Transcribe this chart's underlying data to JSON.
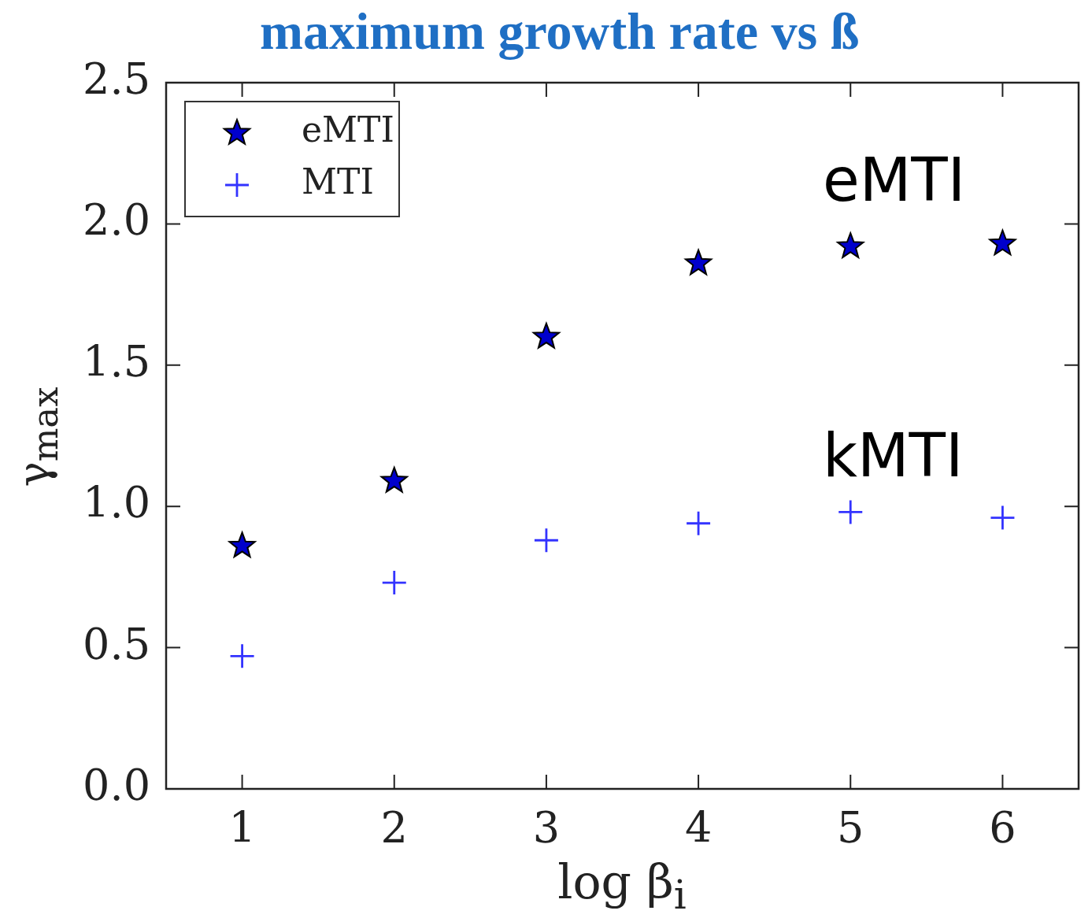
{
  "chart_data": {
    "type": "scatter",
    "title": "maximum growth rate vs ß",
    "xlabel": "log β$_{i}$",
    "ylabel": "γ$_{max}$",
    "x": [
      1,
      2,
      3,
      4,
      5,
      6
    ],
    "series": [
      {
        "name": "eMTI",
        "color": "#0000cc",
        "marker": "star",
        "values": [
          0.86,
          1.09,
          1.6,
          1.86,
          1.92,
          1.93
        ]
      },
      {
        "name": "MTI",
        "color": "#3333ff",
        "marker": "cross",
        "values": [
          0.47,
          0.73,
          0.88,
          0.94,
          0.98,
          0.96
        ]
      }
    ],
    "annotations": [
      "eMTI",
      "kMTI"
    ],
    "xlim": [
      0.5,
      6.5
    ],
    "xticks": [
      1,
      2,
      3,
      4,
      5,
      6
    ],
    "ylim": [
      0,
      2.5
    ],
    "yticks": [
      {
        "value": 0,
        "label": "0.0"
      },
      {
        "value": 0.5,
        "label": "0.5"
      },
      {
        "value": 1,
        "label": "1.0"
      },
      {
        "value": 1.5,
        "label": "1.5"
      },
      {
        "value": 2,
        "label": "2.0"
      },
      {
        "value": 2.5,
        "label": "2.5"
      }
    ],
    "grid": false,
    "legend": "top left"
  }
}
